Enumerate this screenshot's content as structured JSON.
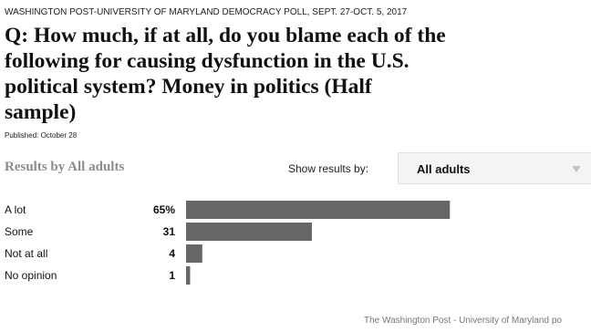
{
  "poll": {
    "source": "WASHINGTON POST-UNIVERSITY OF MARYLAND DEMOCRACY POLL, SEPT. 27-OCT. 5, 2017",
    "question_lines": [
      "Q: How much, if at all, do you blame each of the",
      "following for causing dysfunction in the U.S.",
      "political system? Money in politics (Half",
      "sample)"
    ],
    "published": "Published: October 28"
  },
  "results": {
    "heading": "Results by All adults",
    "show_label": "Show results by:",
    "selected_group": "All adults",
    "dropdown_icon": "chevron-down-icon"
  },
  "chart_data": {
    "type": "bar",
    "orientation": "horizontal",
    "categories": [
      "A lot",
      "Some",
      "Not at all",
      "No opinion"
    ],
    "values": [
      65,
      31,
      4,
      1
    ],
    "value_labels": [
      "65%",
      "31",
      "4",
      "1"
    ],
    "xlim": [
      0,
      100
    ],
    "bar_color": "#666666"
  },
  "footer": {
    "credit": "The Washington Post - University of Maryland po"
  },
  "colors": {
    "bar": "#666666",
    "heading_gray": "#8c8c8c",
    "dropdown_bg": "#f4f4f4",
    "footer_text": "#777777"
  }
}
